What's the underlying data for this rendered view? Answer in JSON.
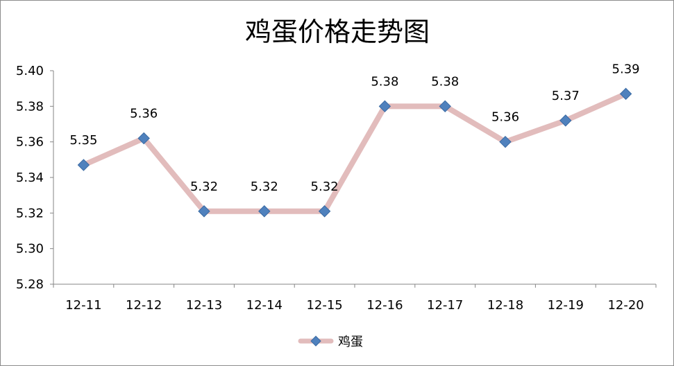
{
  "chart_data": {
    "type": "line",
    "title": "鸡蛋价格走势图",
    "xlabel": "",
    "ylabel": "",
    "categories": [
      "12-11",
      "12-12",
      "12-13",
      "12-14",
      "12-15",
      "12-16",
      "12-17",
      "12-18",
      "12-19",
      "12-20"
    ],
    "ylim": [
      5.28,
      5.4
    ],
    "yticks": [
      5.28,
      5.3,
      5.32,
      5.34,
      5.36,
      5.38,
      5.4
    ],
    "grid": false,
    "legend": "bottom",
    "series": [
      {
        "name": "鸡蛋",
        "values": [
          5.347,
          5.362,
          5.321,
          5.321,
          5.321,
          5.38,
          5.38,
          5.36,
          5.372,
          5.387
        ],
        "data_labels": [
          "5.35",
          "5.36",
          "5.32",
          "5.32",
          "5.32",
          "5.38",
          "5.38",
          "5.36",
          "5.37",
          "5.39"
        ],
        "line_color": "#e2bcbc",
        "marker_color": "#4f81bd"
      }
    ]
  }
}
